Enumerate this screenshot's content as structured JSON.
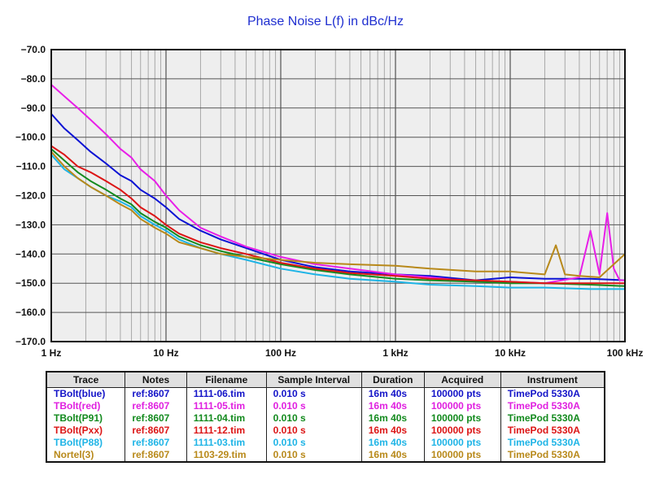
{
  "chart_data": {
    "type": "line",
    "title": "Phase Noise L(f) in dBc/Hz",
    "xscale": "log",
    "xlim": [
      1,
      100000
    ],
    "ylim": [
      -170,
      -70
    ],
    "grid": true,
    "yticks": [
      "−70.0",
      "−80.0",
      "−90.0",
      "−100.0",
      "−110.0",
      "−120.0",
      "−130.0",
      "−140.0",
      "−150.0",
      "−160.0",
      "−170.0"
    ],
    "xticks": [
      "1 Hz",
      "10 Hz",
      "100 Hz",
      "1 kHz",
      "10 kHz",
      "100 kHz"
    ],
    "series": [
      {
        "name": "TBolt(blue)",
        "color": "#0b12d4",
        "x": [
          1,
          1.3,
          1.7,
          2.2,
          3,
          4,
          5,
          6,
          8,
          10,
          13,
          20,
          30,
          50,
          100,
          200,
          400,
          1000,
          2000,
          5000,
          10000,
          20000,
          50000,
          100000
        ],
        "y": [
          -92,
          -97,
          -101,
          -105,
          -109,
          -113,
          -115,
          -118,
          -121,
          -124,
          -128,
          -132,
          -135,
          -138,
          -142,
          -144.5,
          -146,
          -147,
          -147.5,
          -149,
          -148,
          -148.5,
          -148.5,
          -149
        ]
      },
      {
        "name": "TBolt(red)",
        "color": "#e81ee8",
        "x": [
          1,
          1.3,
          1.7,
          2.2,
          3,
          4,
          5,
          6,
          8,
          10,
          13,
          20,
          30,
          50,
          100,
          200,
          400,
          1000,
          2000,
          5000,
          10000,
          20000,
          40000,
          50000,
          60000,
          70000,
          80000,
          90000,
          100000
        ],
        "y": [
          -82,
          -86,
          -90,
          -94,
          -99,
          -104,
          -107,
          -111,
          -115,
          -120,
          -125,
          -131,
          -134,
          -137.5,
          -141,
          -143.5,
          -145,
          -147,
          -148,
          -149.5,
          -149.5,
          -150,
          -148,
          -132,
          -147,
          -126,
          -145,
          -149,
          -149
        ]
      },
      {
        "name": "TBolt(P91)",
        "color": "#138a1e",
        "x": [
          1,
          1.3,
          1.7,
          2.2,
          3,
          4,
          5,
          6,
          8,
          10,
          13,
          20,
          30,
          50,
          100,
          200,
          400,
          1000,
          2000,
          5000,
          10000,
          20000,
          50000,
          100000
        ],
        "y": [
          -104,
          -108,
          -112,
          -115,
          -118,
          -121,
          -123,
          -126,
          -129,
          -131,
          -134,
          -137,
          -139,
          -141,
          -143.5,
          -145.5,
          -147,
          -148.5,
          -149,
          -149.5,
          -150,
          -150,
          -150.5,
          -151
        ]
      },
      {
        "name": "TBolt(Pxx)",
        "color": "#dc1515",
        "x": [
          1,
          1.3,
          1.7,
          2.2,
          3,
          4,
          5,
          6,
          8,
          10,
          13,
          20,
          30,
          50,
          100,
          200,
          400,
          1000,
          2000,
          5000,
          10000,
          20000,
          50000,
          100000
        ],
        "y": [
          -103,
          -106,
          -110,
          -112,
          -115,
          -118,
          -121,
          -124,
          -127,
          -130,
          -133,
          -136,
          -138,
          -140,
          -143,
          -145,
          -146.5,
          -147.5,
          -148.5,
          -149,
          -149.5,
          -150,
          -150,
          -150
        ]
      },
      {
        "name": "TBolt(P88)",
        "color": "#1eb4e6",
        "x": [
          1,
          1.3,
          1.7,
          2.2,
          3,
          4,
          5,
          6,
          8,
          10,
          13,
          20,
          30,
          50,
          100,
          200,
          400,
          1000,
          2000,
          5000,
          10000,
          20000,
          50000,
          100000
        ],
        "y": [
          -106,
          -111,
          -114,
          -117,
          -120,
          -122,
          -124,
          -127,
          -130,
          -132,
          -135,
          -138,
          -140,
          -142,
          -145,
          -147,
          -148.5,
          -149.5,
          -150.5,
          -151,
          -151.5,
          -151.5,
          -152,
          -152
        ]
      },
      {
        "name": "Nortel(3)",
        "color": "#b8891a",
        "x": [
          1,
          1.3,
          1.7,
          2.2,
          3,
          4,
          5,
          6,
          8,
          10,
          13,
          20,
          30,
          50,
          100,
          200,
          400,
          1000,
          2000,
          5000,
          10000,
          20000,
          25000,
          30000,
          40000,
          60000,
          100000
        ],
        "y": [
          -105,
          -110,
          -114,
          -117,
          -120,
          -123,
          -125,
          -128,
          -131,
          -133,
          -136,
          -138,
          -140,
          -141,
          -142,
          -143,
          -143.5,
          -144,
          -145,
          -146,
          -146,
          -147,
          -137,
          -147,
          -147.5,
          -148,
          -140
        ]
      }
    ]
  },
  "legend_table": {
    "headers": [
      "Trace",
      "Notes",
      "Filename",
      "Sample Interval",
      "Duration",
      "Acquired",
      "Instrument"
    ],
    "rows": [
      {
        "color": "#1414c8",
        "cells": [
          "TBolt(blue)",
          "ref:8607",
          "1111-06.tim",
          "0.010 s",
          "16m 40s",
          "100000 pts",
          "TimePod 5330A"
        ]
      },
      {
        "color": "#e020e0",
        "cells": [
          "TBolt(red)",
          "ref:8607",
          "1111-05.tim",
          "0.010 s",
          "16m 40s",
          "100000 pts",
          "TimePod 5330A"
        ]
      },
      {
        "color": "#138a1e",
        "cells": [
          "TBolt(P91)",
          "ref:8607",
          "1111-04.tim",
          "0.010 s",
          "16m 40s",
          "100000 pts",
          "TimePod 5330A"
        ]
      },
      {
        "color": "#dc1515",
        "cells": [
          "TBolt(Pxx)",
          "ref:8607",
          "1111-12.tim",
          "0.010 s",
          "16m 40s",
          "100000 pts",
          "TimePod 5330A"
        ]
      },
      {
        "color": "#1eb4e6",
        "cells": [
          "TBolt(P88)",
          "ref:8607",
          "1111-03.tim",
          "0.010 s",
          "16m 40s",
          "100000 pts",
          "TimePod 5330A"
        ]
      },
      {
        "color": "#b8891a",
        "cells": [
          "Nortel(3)",
          "ref:8607",
          "1103-29.tim",
          "0.010 s",
          "16m 40s",
          "100000 pts",
          "TimePod 5330A"
        ]
      }
    ]
  }
}
